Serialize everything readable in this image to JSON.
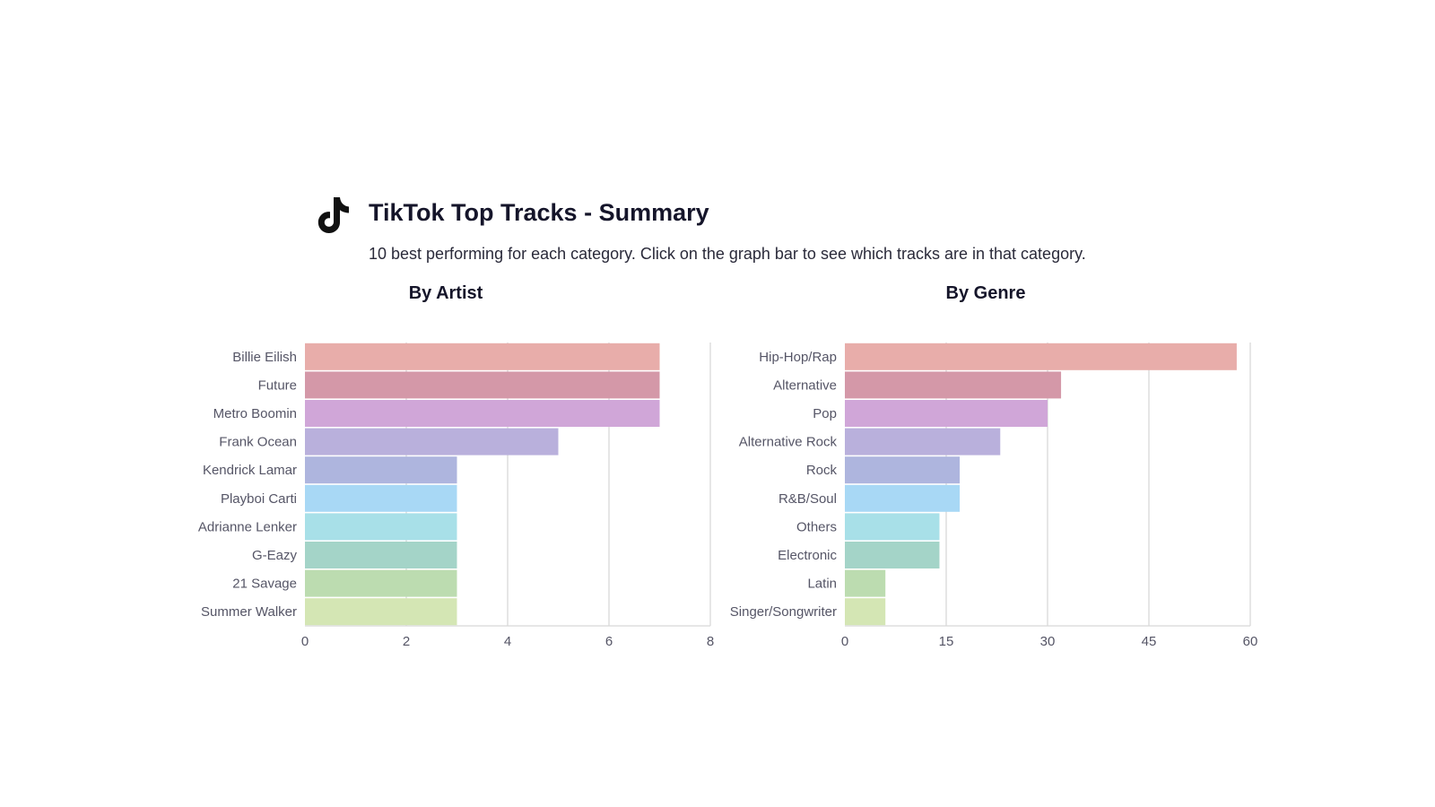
{
  "header": {
    "title": "TikTok Top Tracks - Summary",
    "subtitle": "10 best performing for each category. Click on the graph bar to see which tracks are in that category.",
    "logo_icon": "tiktok-logo-icon"
  },
  "chart_data": [
    {
      "type": "bar",
      "orientation": "horizontal",
      "title": "By Artist",
      "categories": [
        "Billie Eilish",
        "Future",
        "Metro Boomin",
        "Frank Ocean",
        "Kendrick Lamar",
        "Playboi Carti",
        "Adrianne Lenker",
        "G-Eazy",
        "21 Savage",
        "Summer Walker"
      ],
      "values": [
        7,
        7,
        7,
        5,
        3,
        3,
        3,
        3,
        3,
        3
      ],
      "xlim": [
        0,
        8
      ],
      "xticks": [
        0,
        2,
        4,
        6,
        8
      ],
      "grid": true,
      "colors": [
        "#e8adaa",
        "#d498a8",
        "#d0a6d8",
        "#b9b0dc",
        "#aeb5de",
        "#a8d8f5",
        "#a8e0e8",
        "#a4d4c8",
        "#bcdcb0",
        "#d4e6b4"
      ]
    },
    {
      "type": "bar",
      "orientation": "horizontal",
      "title": "By Genre",
      "categories": [
        "Hip-Hop/Rap",
        "Alternative",
        "Pop",
        "Alternative Rock",
        "Rock",
        "R&B/Soul",
        "Others",
        "Electronic",
        "Latin",
        "Singer/Songwriter"
      ],
      "values": [
        58,
        32,
        30,
        23,
        17,
        17,
        14,
        14,
        6,
        6
      ],
      "xlim": [
        0,
        60
      ],
      "xticks": [
        0,
        15,
        30,
        45,
        60
      ],
      "grid": true,
      "colors": [
        "#e8adaa",
        "#d498a8",
        "#d0a6d8",
        "#b9b0dc",
        "#aeb5de",
        "#a8d8f5",
        "#a8e0e8",
        "#a4d4c8",
        "#bcdcb0",
        "#d4e6b4"
      ]
    }
  ]
}
